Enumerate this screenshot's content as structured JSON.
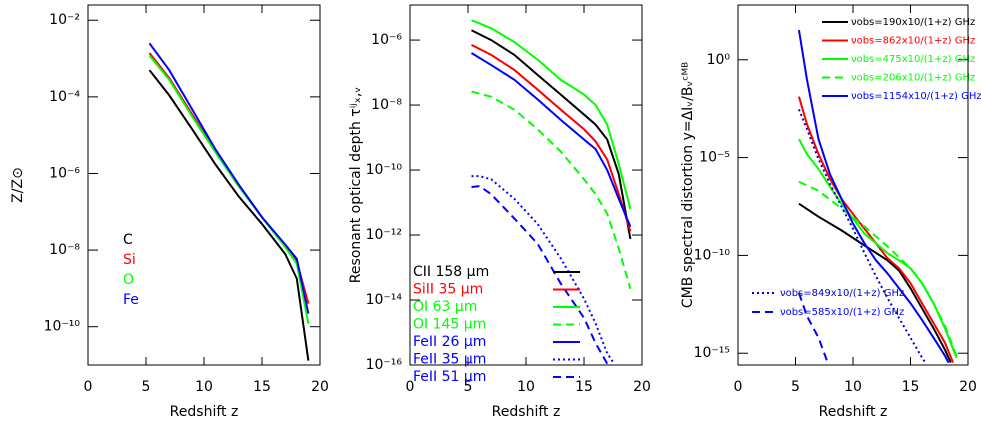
{
  "chart_data": [
    {
      "type": "line",
      "xlabel": "Redshift z",
      "ylabel": "Z/Z⊙",
      "xlim": [
        0,
        20
      ],
      "xticks": [
        0,
        5,
        10,
        15,
        20
      ],
      "ylim": [
        1e-11,
        0.025
      ],
      "ylog": true,
      "yticks": [
        {
          "value": 0.01,
          "label": "10⁻²"
        },
        {
          "value": 0.0001,
          "label": "10⁻⁴"
        },
        {
          "value": 1e-06,
          "label": "10⁻⁶"
        },
        {
          "value": 1e-08,
          "label": "10⁻⁸"
        },
        {
          "value": 1e-10,
          "label": "10⁻¹⁰"
        }
      ],
      "legend": "lower left",
      "legend_style": "text",
      "series": [
        {
          "name": "C",
          "color": "#000000",
          "dash": "solid",
          "x": [
            5.3,
            7,
            9,
            11,
            13,
            15,
            17,
            18,
            19
          ],
          "values": [
            0.0005,
            0.00011,
            1.4e-05,
            1.7e-06,
            2.5e-07,
            4.8e-08,
            7.9e-09,
            1.8e-09,
            1.3e-11
          ]
        },
        {
          "name": "Si",
          "color": "#ff0000",
          "dash": "solid",
          "x": [
            5.3,
            7,
            9,
            11,
            13,
            15,
            17,
            18,
            19
          ],
          "values": [
            0.0014,
            0.00031,
            3.4e-05,
            3.7e-06,
            4.6e-07,
            7.2e-08,
            1.3e-08,
            5.1e-09,
            4e-10
          ]
        },
        {
          "name": "O",
          "color": "#00ff00",
          "dash": "solid",
          "x": [
            5.3,
            7,
            9,
            11,
            13,
            15,
            17,
            18,
            19
          ],
          "values": [
            0.0012,
            0.00028,
            3e-05,
            3.5e-06,
            4.6e-07,
            7.2e-08,
            1.2e-08,
            4.4e-09,
            1.2e-10
          ]
        },
        {
          "name": "Fe",
          "color": "#0000ff",
          "dash": "solid",
          "x": [
            5.3,
            7,
            9,
            11,
            13,
            15,
            17,
            18,
            19
          ],
          "values": [
            0.0025,
            0.0005,
            4.6e-05,
            4.2e-06,
            5.1e-07,
            7.2e-08,
            1.4e-08,
            5.9e-09,
            2.2e-10
          ]
        }
      ]
    },
    {
      "type": "line",
      "xlabel": "Redshift z",
      "ylabel": "Resonant optical depth τⁱʲₓ,ᵥ",
      "xlim": [
        0,
        20
      ],
      "xticks": [
        0,
        5,
        10,
        15,
        20
      ],
      "ylim": [
        1e-16,
        1.2e-05
      ],
      "ylog": true,
      "yticks": [
        {
          "value": 1e-06,
          "label": "10⁻⁶"
        },
        {
          "value": 1e-08,
          "label": "10⁻⁸"
        },
        {
          "value": 1e-10,
          "label": "10⁻¹⁰"
        },
        {
          "value": 1e-12,
          "label": "10⁻¹²"
        },
        {
          "value": 1e-14,
          "label": "10⁻¹⁴"
        },
        {
          "value": 1e-16,
          "label": "10⁻¹⁶"
        }
      ],
      "legend": "lower left",
      "legend_style": "lines",
      "series": [
        {
          "name": "CII 158 μm",
          "color": "#000000",
          "dash": "solid",
          "x": [
            5.3,
            7,
            9,
            11,
            13,
            15,
            16,
            17,
            18,
            19
          ],
          "values": [
            2e-06,
            1e-06,
            3.5e-07,
            8.5e-08,
            2.1e-08,
            5.1e-09,
            2.5e-09,
            8.7e-10,
            7.4e-11,
            7.6e-13
          ]
        },
        {
          "name": "SiII 35 μm",
          "color": "#ff0000",
          "dash": "solid",
          "x": [
            5.3,
            7,
            9,
            11,
            13,
            15,
            16,
            17,
            18,
            19
          ],
          "values": [
            7.1e-07,
            3.5e-07,
            1.2e-07,
            3e-08,
            7.2e-09,
            1.8e-09,
            7.6e-10,
            2.1e-10,
            1.8e-11,
            1.3e-12
          ]
        },
        {
          "name": "OI 63 μm",
          "color": "#00ff00",
          "dash": "solid",
          "x": [
            5.3,
            7,
            9,
            11,
            13,
            15,
            16,
            17,
            18,
            19
          ],
          "values": [
            4.1e-06,
            2.3e-06,
            8.7e-07,
            2.5e-07,
            6e-08,
            2.1e-08,
            1e-08,
            2.5e-09,
            1.5e-10,
            6.3e-12
          ]
        },
        {
          "name": "OI 145 μm",
          "color": "#00ff00",
          "dash": "dashed",
          "x": [
            5.3,
            7,
            9,
            11,
            13,
            15,
            16,
            17,
            18,
            19
          ],
          "values": [
            2.6e-08,
            1.8e-08,
            7.2e-09,
            1.8e-09,
            3.7e-10,
            5.2e-11,
            1.8e-11,
            4.5e-12,
            3.8e-13,
            2.2e-14
          ]
        },
        {
          "name": "FeII 26 μm",
          "color": "#0000ff",
          "dash": "solid",
          "x": [
            5.3,
            7,
            9,
            11,
            13,
            15,
            16,
            17,
            18,
            19
          ],
          "values": [
            4e-07,
            1.7e-07,
            6e-08,
            1.5e-08,
            3.5e-09,
            8.7e-10,
            4.4e-10,
            1e-10,
            1.3e-11,
            1.8e-12
          ]
        },
        {
          "name": "FeII 35 μm",
          "color": "#0000ff",
          "dash": "dotted",
          "x": [
            5.3,
            6,
            7,
            9,
            11,
            13,
            15,
            16,
            17,
            17.6
          ],
          "values": [
            6.5e-11,
            6.5e-11,
            5.2e-11,
            1.3e-11,
            2.2e-12,
            1.9e-13,
            1.1e-14,
            1.9e-15,
            2.3e-16,
            1.1e-16
          ]
        },
        {
          "name": "FeII 51 μm",
          "color": "#0000ff",
          "dash": "dashed",
          "x": [
            5.3,
            6,
            7,
            9,
            11,
            13,
            15,
            16,
            17
          ],
          "values": [
            3e-11,
            3.2e-11,
            1.8e-11,
            3.2e-12,
            5.4e-13,
            3.2e-14,
            2.8e-15,
            4.7e-16,
            1.1e-16
          ]
        }
      ]
    },
    {
      "type": "line",
      "xlabel": "Redshift z",
      "ylabel": "CMB spectral distortion y=ΔIᵥ/Bᵥᶜᴹᴮ",
      "xlim": [
        0,
        20
      ],
      "xticks": [
        0,
        5,
        10,
        15,
        20
      ],
      "ylim": [
        2.5e-16,
        630
      ],
      "ylog": true,
      "yticks": [
        {
          "value": 1,
          "label": "10⁰"
        },
        {
          "value": 1e-05,
          "label": "10⁻⁵"
        },
        {
          "value": 1e-10,
          "label": "10⁻¹⁰"
        },
        {
          "value": 1e-15,
          "label": "10⁻¹⁵"
        }
      ],
      "legend_style": "lines",
      "series": [
        {
          "name": "νobs=190x10/(1+z) GHz",
          "color": "#000000",
          "dash": "solid",
          "legend_loc": "upper right",
          "x": [
            5.3,
            7,
            9,
            11,
            13,
            14,
            15,
            16,
            17,
            18,
            18.5
          ],
          "values": [
            4.4e-08,
            9.5e-09,
            1.9e-09,
            3.2e-10,
            5.6e-11,
            1.7e-11,
            2.1e-12,
            2e-13,
            1.9e-14,
            1.5e-15,
            3.3e-16
          ]
        },
        {
          "name": "νobs=862x10/(1+z) GHz",
          "color": "#ff0000",
          "dash": "solid",
          "legend_loc": "upper right",
          "x": [
            5.3,
            6,
            7,
            8,
            9,
            10,
            11,
            12,
            13,
            14,
            15,
            16,
            17,
            18,
            18.7
          ],
          "values": [
            0.013,
            0.0005,
            1.5e-05,
            8.1e-07,
            7.8e-08,
            1.3e-08,
            2.3e-09,
            4.1e-10,
            7.1e-11,
            2.2e-11,
            3.8e-12,
            3.6e-13,
            3.5e-14,
            3.4e-15,
            3.3e-16
          ]
        },
        {
          "name": "νobs=475x10/(1+z) GHz",
          "color": "#00ff00",
          "dash": "solid",
          "legend_loc": "upper right",
          "x": [
            5.3,
            6,
            7,
            8,
            9,
            10,
            11,
            12,
            13,
            14,
            15,
            16,
            17,
            18,
            19
          ],
          "values": [
            8.7e-05,
            1.5e-05,
            2.6e-06,
            3.2e-07,
            4.4e-08,
            7.6e-09,
            1.3e-09,
            4.1e-10,
            1.3e-10,
            5.6e-11,
            2.2e-11,
            3.8e-12,
            3.6e-13,
            1.9e-14,
            5.9e-16
          ]
        },
        {
          "name": "νobs=206x10/(1+z) GHz",
          "color": "#00ff00",
          "dash": "dashed",
          "legend_loc": "upper right",
          "x": [
            5.3,
            7,
            9,
            11,
            13,
            15,
            16,
            17,
            18,
            19
          ],
          "values": [
            5.8e-07,
            2e-07,
            2.5e-08,
            3e-09,
            2.9e-10,
            2.2e-11,
            3.8e-12,
            3.6e-13,
            2.5e-14,
            7.4e-16
          ]
        },
        {
          "name": "νobs=1154x10/(1+z) GHz",
          "color": "#0000ff",
          "dash": "solid",
          "legend_loc": "upper right",
          "x": [
            5.3,
            6,
            7,
            8,
            9,
            10,
            11,
            12,
            13,
            14,
            15,
            16,
            17,
            18,
            18.3
          ],
          "values": [
            33,
            0.095,
            8.7e-05,
            1.4e-06,
            7.8e-08,
            4.2e-09,
            4.1e-10,
            5.6e-11,
            1.2e-11,
            2.1e-12,
            3.6e-13,
            5e-14,
            6.2e-15,
            7.4e-16,
            3.3e-16
          ]
        },
        {
          "name": "νobs=849x10/(1+z) GHz",
          "color": "#0000cc",
          "dash": "dotted",
          "legend_loc": "center left",
          "x": [
            5.3,
            6,
            7,
            8,
            9,
            10,
            11,
            12,
            13,
            14,
            15,
            16,
            16.3
          ],
          "values": [
            0.0029,
            0.00028,
            8.3e-06,
            4.5e-07,
            3.1e-08,
            2.3e-09,
            1.3e-10,
            8.5e-12,
            6.6e-13,
            6.3e-14,
            6.2e-15,
            5.9e-16,
            3.3e-16
          ]
        },
        {
          "name": "νobs=585x10/(1+z) GHz",
          "color": "#0000ff",
          "dash": "dashed",
          "legend_loc": "center left",
          "x": [
            5.3,
            6,
            7,
            7.8
          ],
          "values": [
            1.2e-12,
            7.9e-14,
            6.2e-15,
            3.3e-16
          ]
        }
      ]
    }
  ]
}
